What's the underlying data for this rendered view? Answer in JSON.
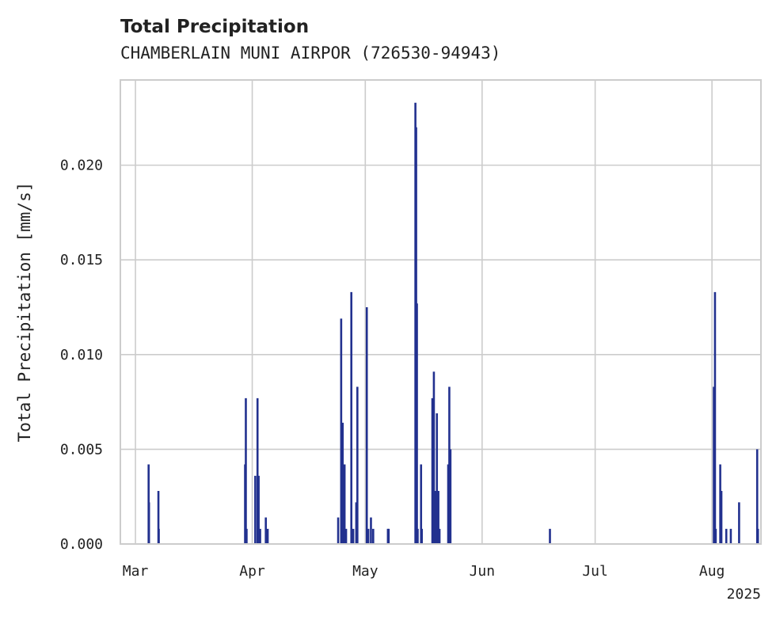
{
  "chart_data": {
    "type": "bar",
    "title": "Total Precipitation",
    "subtitle": "CHAMBERLAIN MUNI AIRPOR (726530-94943)",
    "ylabel": "Total Precipitation [mm/s]",
    "xlabel": "",
    "year_label": "2025",
    "ylim": [
      0,
      0.0245
    ],
    "xlim_days": [
      -4,
      166
    ],
    "y_ticks": [
      {
        "value": 0.0,
        "label": "0.000"
      },
      {
        "value": 0.005,
        "label": "0.005"
      },
      {
        "value": 0.01,
        "label": "0.010"
      },
      {
        "value": 0.015,
        "label": "0.015"
      },
      {
        "value": 0.02,
        "label": "0.020"
      }
    ],
    "x_ticks": [
      {
        "day": 0,
        "label": "Mar"
      },
      {
        "day": 31,
        "label": "Apr"
      },
      {
        "day": 61,
        "label": "May"
      },
      {
        "day": 92,
        "label": "Jun"
      },
      {
        "day": 122,
        "label": "Jul"
      },
      {
        "day": 153,
        "label": "Aug"
      }
    ],
    "x_units": "days since Mar 1, 2025",
    "series": [
      {
        "name": "Total Precipitation",
        "color": "#22318f",
        "points": [
          [
            3.5,
            0.0042
          ],
          [
            3.6,
            0.0022
          ],
          [
            6.1,
            0.0028
          ],
          [
            6.2,
            0.0008
          ],
          [
            29.1,
            0.0042
          ],
          [
            29.3,
            0.0077
          ],
          [
            29.5,
            0.0008
          ],
          [
            31.8,
            0.0036
          ],
          [
            32.4,
            0.0077
          ],
          [
            32.7,
            0.0036
          ],
          [
            33.1,
            0.0008
          ],
          [
            34.6,
            0.0014
          ],
          [
            35.1,
            0.0008
          ],
          [
            53.8,
            0.0014
          ],
          [
            54.6,
            0.0119
          ],
          [
            55.0,
            0.0064
          ],
          [
            55.5,
            0.0042
          ],
          [
            55.9,
            0.0008
          ],
          [
            57.3,
            0.0133
          ],
          [
            57.8,
            0.0008
          ],
          [
            58.6,
            0.0022
          ],
          [
            58.9,
            0.0083
          ],
          [
            61.4,
            0.0125
          ],
          [
            61.8,
            0.0008
          ],
          [
            62.5,
            0.0014
          ],
          [
            63.1,
            0.0008
          ],
          [
            67.0,
            0.0008
          ],
          [
            67.2,
            0.0008
          ],
          [
            74.3,
            0.0233
          ],
          [
            74.5,
            0.022
          ],
          [
            74.7,
            0.0127
          ],
          [
            74.9,
            0.0008
          ],
          [
            75.8,
            0.0042
          ],
          [
            76.0,
            0.0008
          ],
          [
            78.8,
            0.0077
          ],
          [
            79.2,
            0.0091
          ],
          [
            79.5,
            0.0028
          ],
          [
            80.0,
            0.0069
          ],
          [
            80.4,
            0.0028
          ],
          [
            80.7,
            0.0008
          ],
          [
            83.0,
            0.0042
          ],
          [
            83.3,
            0.0083
          ],
          [
            83.6,
            0.005
          ],
          [
            110.0,
            0.0008
          ],
          [
            153.5,
            0.0083
          ],
          [
            153.8,
            0.0133
          ],
          [
            154.0,
            0.0008
          ],
          [
            155.2,
            0.0042
          ],
          [
            155.5,
            0.0028
          ],
          [
            156.8,
            0.0008
          ],
          [
            158.0,
            0.0008
          ],
          [
            160.2,
            0.0022
          ],
          [
            165.0,
            0.005
          ],
          [
            165.2,
            0.0008
          ]
        ]
      }
    ]
  }
}
